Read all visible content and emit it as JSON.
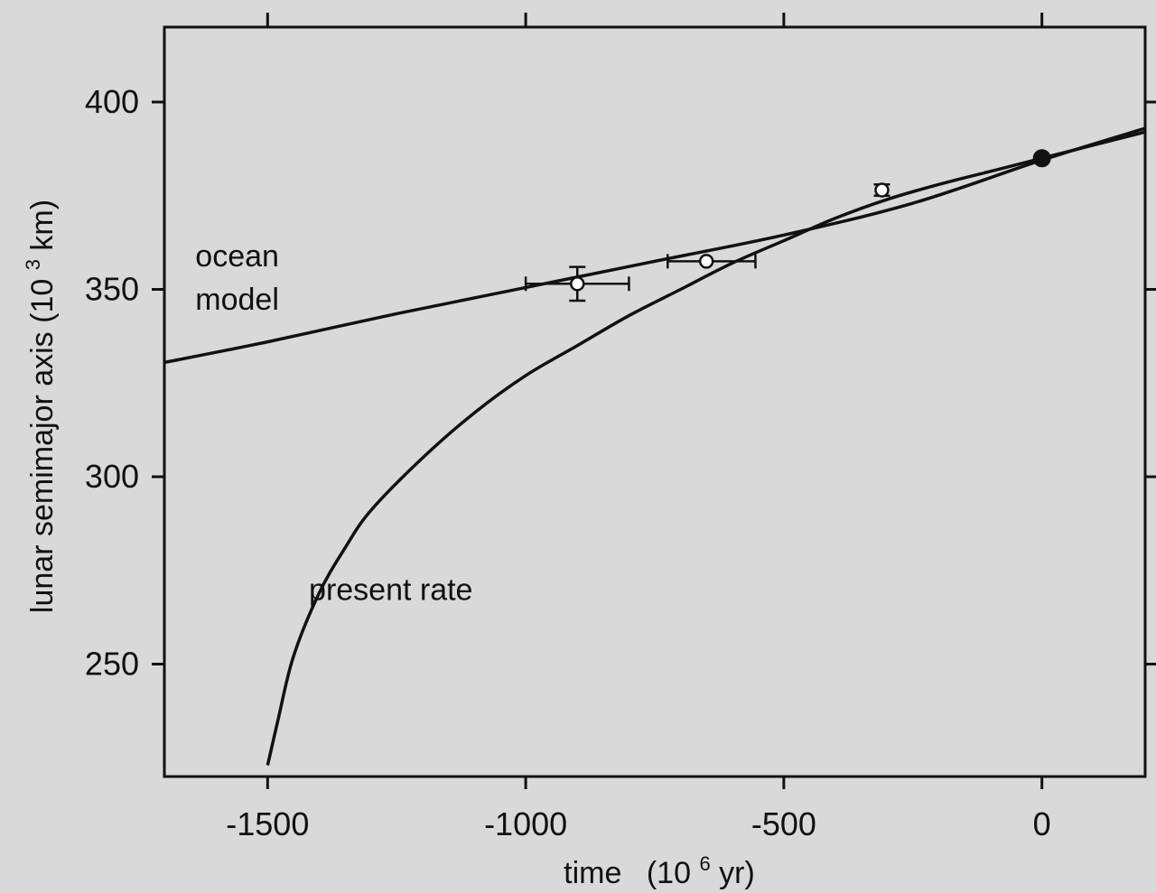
{
  "chart_data": {
    "type": "line",
    "xlabel": "time",
    "xlabel_unit": "(10",
    "xlabel_exp": "6",
    "xlabel_tail": " yr)",
    "ylabel": "lunar semimajor axis (10",
    "ylabel_exp": "3",
    "ylabel_tail": " km)",
    "xlim": [
      -1700,
      200
    ],
    "ylim": [
      220,
      420
    ],
    "xticks": [
      -1500,
      -1000,
      -500,
      0
    ],
    "yticks": [
      250,
      300,
      350,
      400
    ],
    "xtick_labels": [
      "-1500",
      "-1000",
      "-500",
      "0"
    ],
    "ytick_labels": [
      "250",
      "300",
      "350",
      "400"
    ],
    "grid": false,
    "series": [
      {
        "name": "ocean model",
        "label_line1": "ocean",
        "label_line2": "model",
        "x": [
          -1700,
          -1500,
          -1250,
          -1000,
          -750,
          -500,
          -250,
          0,
          200
        ],
        "y": [
          330.5,
          336,
          343.5,
          350.5,
          357.5,
          364.5,
          373,
          384.5,
          393
        ]
      },
      {
        "name": "present rate",
        "label": "present rate",
        "x": [
          -1500,
          -1480,
          -1450,
          -1400,
          -1350,
          -1300,
          -1200,
          -1100,
          -1000,
          -900,
          -800,
          -700,
          -600,
          -500,
          -400,
          -300,
          -200,
          -100,
          0,
          100,
          200
        ],
        "y": [
          223,
          235,
          252,
          269,
          281,
          291,
          305,
          317,
          327,
          335,
          343,
          350,
          357,
          363,
          369,
          374,
          378,
          381.5,
          385,
          388.5,
          392
        ]
      }
    ],
    "points": [
      {
        "x": -900,
        "y": 351.5,
        "xerr_lo": 100,
        "xerr_hi": 100,
        "yerr": 4.5,
        "style": "open"
      },
      {
        "x": -650,
        "y": 357.5,
        "xerr_lo": 75,
        "xerr_hi": 95,
        "yerr": 0,
        "style": "open"
      },
      {
        "x": -310,
        "y": 376.5,
        "xerr_lo": 0,
        "xerr_hi": 0,
        "yerr": 1.5,
        "style": "open"
      },
      {
        "x": 0,
        "y": 385,
        "xerr_lo": 0,
        "xerr_hi": 0,
        "yerr": 0,
        "style": "filled"
      }
    ],
    "annotation_positions": {
      "ocean_model": {
        "x": -1640,
        "y": 359
      },
      "present_rate": {
        "x": -1420,
        "y": 270
      }
    }
  }
}
